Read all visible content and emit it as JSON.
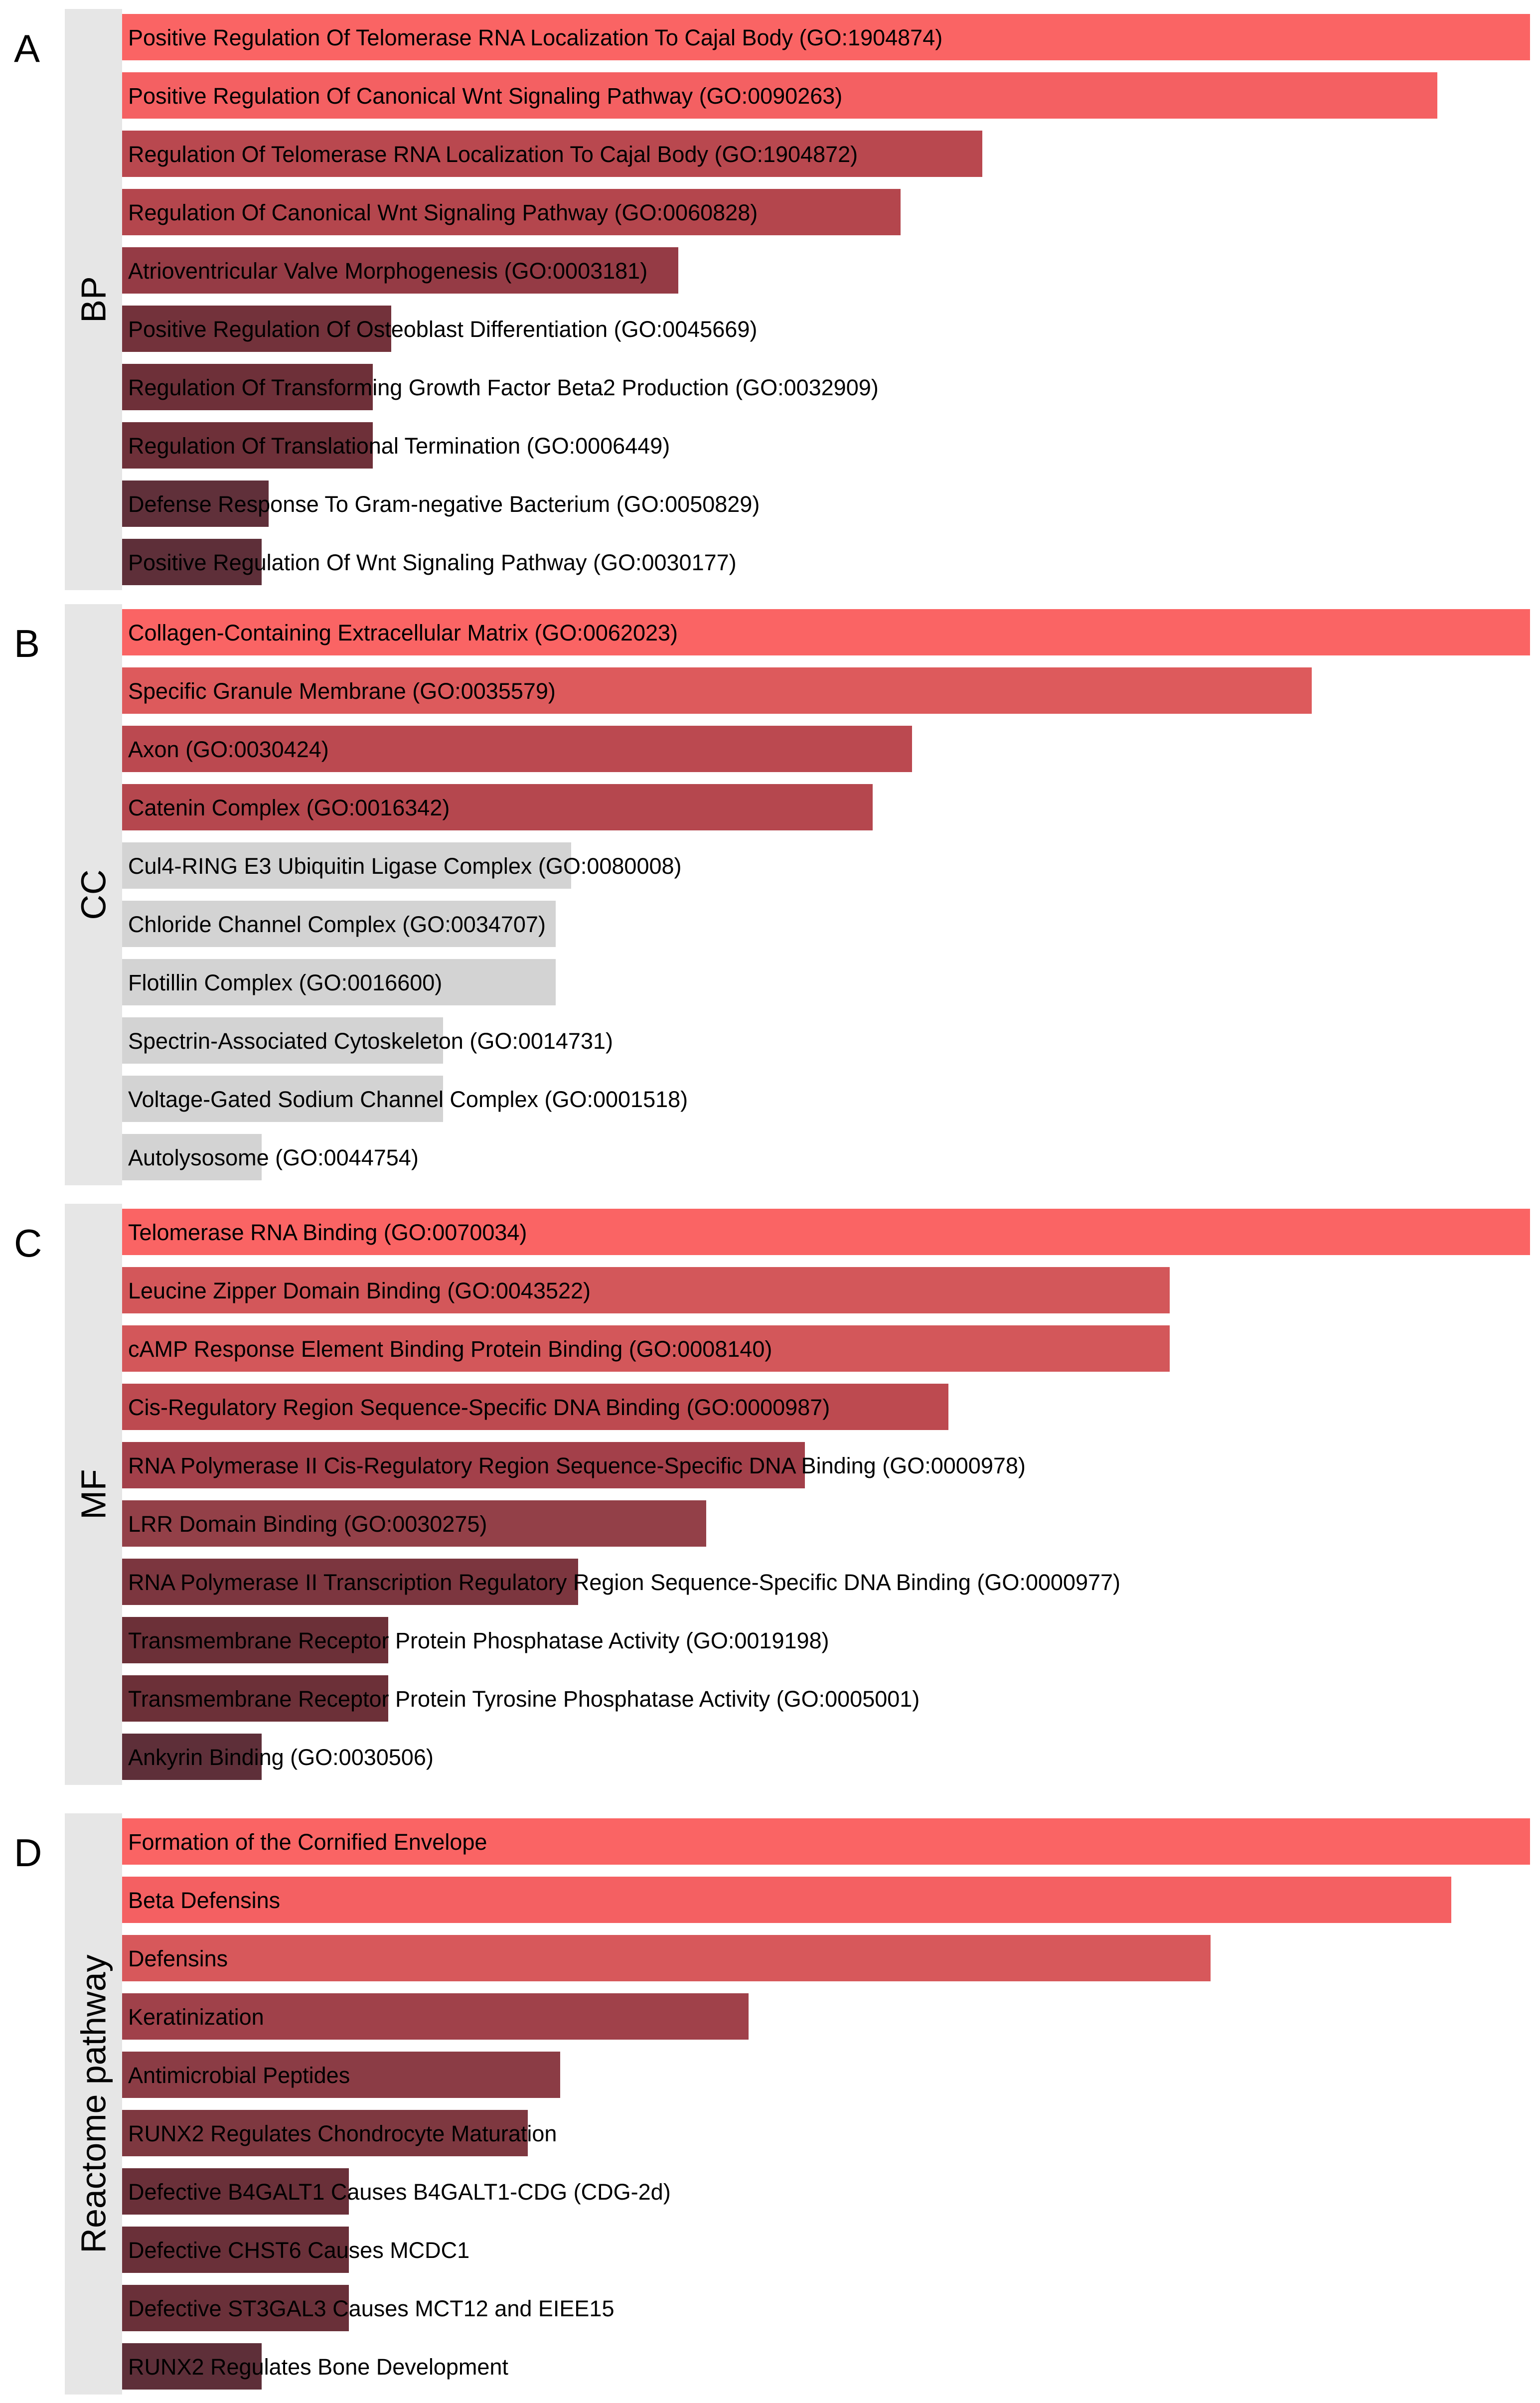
{
  "chart_data": [
    {
      "type": "bar",
      "panel": "A",
      "category": "BP",
      "orientation": "horizontal",
      "terms": [
        "Positive Regulation Of Telomerase RNA Localization To Cajal Body (GO:1904874)",
        "Positive Regulation Of Canonical Wnt Signaling Pathway (GO:0090263)",
        "Regulation Of Telomerase RNA Localization To Cajal Body (GO:1904872)",
        "Regulation Of Canonical Wnt Signaling Pathway (GO:0060828)",
        "Atrioventricular Valve Morphogenesis (GO:0003181)",
        "Positive Regulation Of Osteoblast Differentiation (GO:0045669)",
        "Regulation Of Transforming Growth Factor Beta2 Production (GO:0032909)",
        "Regulation Of Translational Termination (GO:0006449)",
        "Defense Response To Gram-negative Bacterium (GO:0050829)",
        "Positive Regulation Of Wnt Signaling Pathway (GO:0030177)"
      ],
      "values": [
        1.0,
        0.934,
        0.611,
        0.553,
        0.395,
        0.191,
        0.178,
        0.178,
        0.104,
        0.099
      ],
      "colors": [
        "#fa6464",
        "#f46062",
        "#b9484f",
        "#b4464d",
        "#953b45",
        "#73323b",
        "#6e3039",
        "#6e3039",
        "#60303a",
        "#5e2f39"
      ]
    },
    {
      "type": "bar",
      "panel": "B",
      "category": "CC",
      "orientation": "horizontal",
      "terms": [
        "Collagen-Containing Extracellular Matrix (GO:0062023)",
        "Specific Granule Membrane (GO:0035579)",
        "Axon (GO:0030424)",
        "Catenin Complex (GO:0016342)",
        "Cul4-RING E3 Ubiquitin Ligase Complex (GO:0080008)",
        "Chloride Channel Complex (GO:0034707)",
        "Flotillin Complex (GO:0016600)",
        "Spectrin-Associated Cytoskeleton (GO:0014731)",
        "Voltage-Gated Sodium Channel Complex (GO:0001518)",
        "Autolysosome (GO:0044754)"
      ],
      "values": [
        1.0,
        0.845,
        0.561,
        0.533,
        0.319,
        0.308,
        0.308,
        0.228,
        0.228,
        0.099
      ],
      "colors": [
        "#fa6464",
        "#dd5a5c",
        "#bb4950",
        "#b5474e",
        "#d3d3d3",
        "#d3d3d3",
        "#d3d3d3",
        "#d3d3d3",
        "#d3d3d3",
        "#d3d3d3"
      ]
    },
    {
      "type": "bar",
      "panel": "C",
      "category": "MF",
      "orientation": "horizontal",
      "terms": [
        "Telomerase RNA Binding (GO:0070034)",
        "Leucine Zipper Domain Binding (GO:0043522)",
        "cAMP Response Element Binding Protein Binding (GO:0008140)",
        "Cis-Regulatory Region Sequence-Specific DNA Binding (GO:0000987)",
        "RNA Polymerase II Cis-Regulatory Region Sequence-Specific DNA Binding (GO:0000978)",
        "LRR Domain Binding (GO:0030275)",
        "RNA Polymerase II Transcription Regulatory Region Sequence-Specific DNA Binding (GO:0000977)",
        "Transmembrane Receptor Protein Phosphatase Activity (GO:0019198)",
        "Transmembrane Receptor Protein Tyrosine Phosphatase Activity (GO:0005001)",
        "Ankyrin Binding (GO:0030506)"
      ],
      "values": [
        1.0,
        0.744,
        0.744,
        0.587,
        0.485,
        0.415,
        0.324,
        0.189,
        0.189,
        0.099
      ],
      "colors": [
        "#fa6464",
        "#d3575a",
        "#d3575a",
        "#bd4a50",
        "#a3404a",
        "#934048",
        "#7c363f",
        "#6c3038",
        "#6c3038",
        "#5e2f39"
      ]
    },
    {
      "type": "bar",
      "panel": "D",
      "category": "Reactome pathway",
      "orientation": "horizontal",
      "terms": [
        "Formation of the Cornified Envelope",
        "Beta Defensins",
        "Defensins",
        "Keratinization",
        "Antimicrobial Peptides",
        "RUNX2 Regulates Chondrocyte Maturation",
        "Defective B4GALT1 Causes B4GALT1-CDG (CDG-2d)",
        "Defective CHST6 Causes MCDC1",
        "Defective ST3GAL3 Causes MCT12 and EIEE15",
        "RUNX2 Regulates Bone Development"
      ],
      "values": [
        1.0,
        0.944,
        0.773,
        0.445,
        0.311,
        0.288,
        0.161,
        0.161,
        0.161,
        0.099
      ],
      "colors": [
        "#fa6464",
        "#f46062",
        "#d7585b",
        "#a0414a",
        "#8b3c45",
        "#7e3840",
        "#6a3039",
        "#6a3039",
        "#6a3039",
        "#5e2f39"
      ]
    }
  ]
}
